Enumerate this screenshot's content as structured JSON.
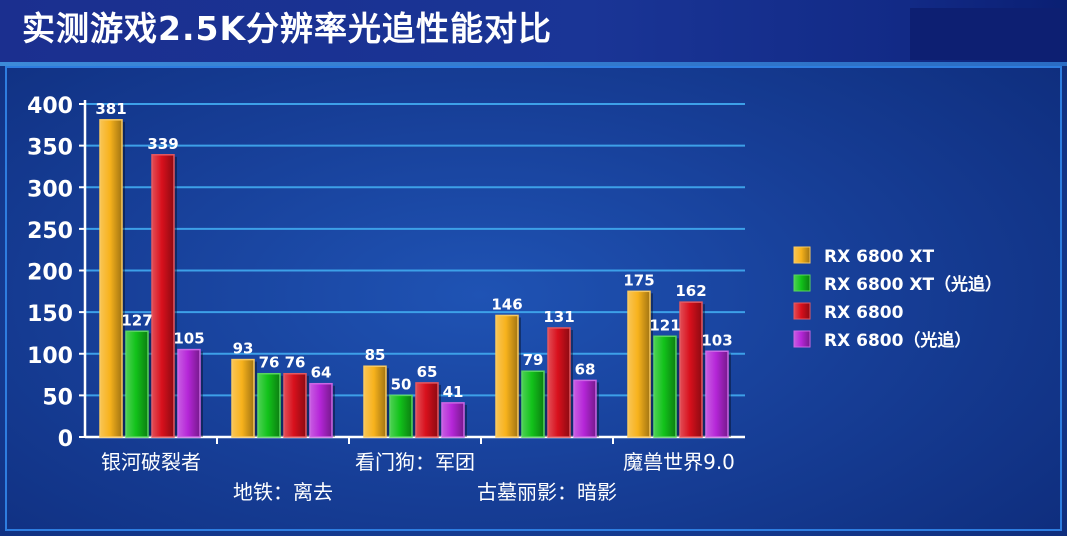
{
  "title": "实测游戏2.5K分辨率光追性能对比",
  "chart_data": {
    "type": "bar",
    "categories": [
      "银河破裂者",
      "地铁：离去",
      "看门狗：军团",
      "古墓丽影：暗影",
      "魔兽世界9.0"
    ],
    "series": [
      {
        "name": "RX 6800 XT",
        "values": [
          381,
          93,
          85,
          146,
          175
        ],
        "color": "#f7b21c"
      },
      {
        "name": "RX 6800 XT（光追）",
        "values": [
          127,
          76,
          50,
          79,
          121
        ],
        "color": "#12c21a"
      },
      {
        "name": "RX 6800",
        "values": [
          339,
          76,
          65,
          131,
          162
        ],
        "color": "#d8101c"
      },
      {
        "name": "RX 6800（光追）",
        "values": [
          105,
          64,
          41,
          68,
          103
        ],
        "color": "#b526d8"
      }
    ],
    "ylim": [
      0,
      400
    ],
    "yticks": [
      0,
      50,
      100,
      150,
      200,
      250,
      300,
      350,
      400
    ],
    "grid": true,
    "legend": "right"
  },
  "colors": {
    "background": "#173f98",
    "title_bar": "#1b2f8f",
    "gridline": "#3da0e8",
    "text": "#ffffff"
  }
}
